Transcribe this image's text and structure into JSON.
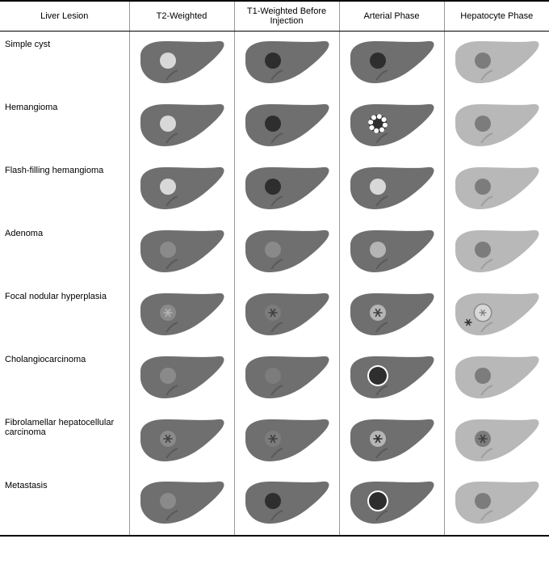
{
  "table": {
    "headers": [
      "Liver Lesion",
      "T2-Weighted",
      "T1-Weighted Before Injection",
      "Arterial Phase",
      "Hepatocyte Phase"
    ],
    "row_labels": [
      "Simple cyst",
      "Hemangioma",
      "Flash-filling hemangioma",
      "Adenoma",
      "Focal nodular hyperplasia",
      "Cholangiocarcinoma",
      "Fibrolamellar hepatocellular carcinoma",
      "Metastasis"
    ]
  },
  "colors": {
    "liver_dark": "#6f6f6f",
    "liver_light": "#b8b8b8",
    "fissure": "#5a5a5a",
    "fissure_light": "#9e9e9e",
    "lesion_very_light": "#d8d8d8",
    "lesion_light": "#b5b5b5",
    "lesion_mid": "#8a8a8a",
    "lesion_mid2": "#7c7c7c",
    "lesion_dark": "#404040",
    "lesion_darker": "#2e2e2e",
    "white": "#ffffff",
    "black": "#000000"
  },
  "liver": {
    "width": 110,
    "height": 62
  },
  "lesions": {
    "simple_cyst": {
      "t2": {
        "liver": "dark",
        "circle": {
          "r": 10,
          "fill": "lesion_very_light"
        }
      },
      "t1": {
        "liver": "dark",
        "circle": {
          "r": 10,
          "fill": "lesion_darker"
        }
      },
      "art": {
        "liver": "dark",
        "circle": {
          "r": 10,
          "fill": "lesion_darker"
        }
      },
      "hep": {
        "liver": "light",
        "circle": {
          "r": 10,
          "fill": "lesion_mid2"
        }
      }
    },
    "hemangioma": {
      "t2": {
        "liver": "dark",
        "circle": {
          "r": 10,
          "fill": "lesion_very_light"
        }
      },
      "t1": {
        "liver": "dark",
        "circle": {
          "r": 10,
          "fill": "lesion_darker"
        }
      },
      "art": {
        "liver": "dark",
        "nodular": true
      },
      "hep": {
        "liver": "light",
        "circle": {
          "r": 10,
          "fill": "lesion_mid2"
        }
      }
    },
    "flash_filling": {
      "t2": {
        "liver": "dark",
        "circle": {
          "r": 10,
          "fill": "lesion_very_light"
        }
      },
      "t1": {
        "liver": "dark",
        "circle": {
          "r": 10,
          "fill": "lesion_darker"
        }
      },
      "art": {
        "liver": "dark",
        "circle": {
          "r": 10,
          "fill": "lesion_very_light"
        }
      },
      "hep": {
        "liver": "light",
        "circle": {
          "r": 10,
          "fill": "lesion_mid2"
        }
      }
    },
    "adenoma": {
      "t2": {
        "liver": "dark",
        "circle": {
          "r": 10,
          "fill": "lesion_mid"
        }
      },
      "t1": {
        "liver": "dark",
        "circle": {
          "r": 10,
          "fill": "lesion_mid"
        }
      },
      "art": {
        "liver": "dark",
        "circle": {
          "r": 10,
          "fill": "lesion_light"
        }
      },
      "hep": {
        "liver": "light",
        "circle": {
          "r": 10,
          "fill": "lesion_mid2"
        }
      }
    },
    "fnh": {
      "t2": {
        "liver": "dark",
        "circle": {
          "r": 10,
          "fill": "lesion_mid"
        },
        "scar": "lesion_light"
      },
      "t1": {
        "liver": "dark",
        "circle": {
          "r": 10,
          "fill": "lesion_mid2"
        },
        "scar": "lesion_dark"
      },
      "art": {
        "liver": "dark",
        "circle": {
          "r": 10,
          "fill": "lesion_light"
        },
        "scar": "lesion_dark"
      },
      "hep": {
        "liver": "light",
        "circle": {
          "r": 10,
          "fill": "lesion_very_light",
          "ring": "lesion_mid"
        },
        "extra_scar": true
      }
    },
    "cholangio": {
      "t2": {
        "liver": "dark",
        "circle": {
          "r": 10,
          "fill": "lesion_mid"
        }
      },
      "t1": {
        "liver": "dark",
        "circle": {
          "r": 10,
          "fill": "lesion_mid2"
        }
      },
      "art": {
        "liver": "dark",
        "circle": {
          "r": 11,
          "fill": "lesion_darker",
          "ring": "white",
          "ringw": 2
        }
      },
      "hep": {
        "liver": "light",
        "circle": {
          "r": 10,
          "fill": "lesion_mid2"
        }
      }
    },
    "fibrolamellar": {
      "t2": {
        "liver": "dark",
        "circle": {
          "r": 10,
          "fill": "lesion_mid"
        },
        "scar": "lesion_dark"
      },
      "t1": {
        "liver": "dark",
        "circle": {
          "r": 10,
          "fill": "lesion_mid2"
        },
        "scar": "lesion_dark"
      },
      "art": {
        "liver": "dark",
        "circle": {
          "r": 10,
          "fill": "lesion_light"
        },
        "scar": "lesion_darker"
      },
      "hep": {
        "liver": "light",
        "circle": {
          "r": 10,
          "fill": "lesion_mid2"
        },
        "scar": "lesion_dark"
      }
    },
    "metastasis": {
      "t2": {
        "liver": "dark",
        "circle": {
          "r": 10,
          "fill": "lesion_mid"
        }
      },
      "t1": {
        "liver": "dark",
        "circle": {
          "r": 10,
          "fill": "lesion_darker"
        }
      },
      "art": {
        "liver": "dark",
        "circle": {
          "r": 11,
          "fill": "lesion_darker",
          "ring": "white",
          "ringw": 2
        }
      },
      "hep": {
        "liver": "light",
        "circle": {
          "r": 10,
          "fill": "lesion_mid2"
        }
      }
    }
  },
  "row_keys": [
    "simple_cyst",
    "hemangioma",
    "flash_filling",
    "adenoma",
    "fnh",
    "cholangio",
    "fibrolamellar",
    "metastasis"
  ],
  "phase_keys": [
    "t2",
    "t1",
    "art",
    "hep"
  ]
}
